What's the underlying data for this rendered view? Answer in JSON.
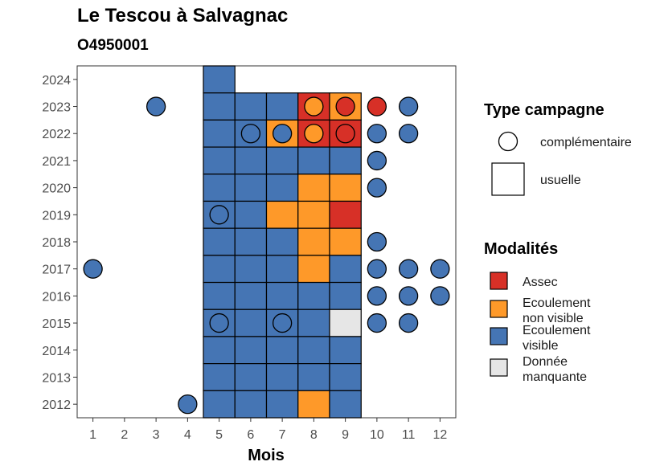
{
  "chart_data": {
    "type": "heatmap",
    "title": "Le Tescou à Salvagnac",
    "subtitle": "O4950001",
    "xlabel": "Mois",
    "ylabel": "",
    "x_ticks": [
      1,
      2,
      3,
      4,
      5,
      6,
      7,
      8,
      9,
      10,
      11,
      12
    ],
    "y_ticks": [
      2012,
      2013,
      2014,
      2015,
      2016,
      2017,
      2018,
      2019,
      2020,
      2021,
      2022,
      2023,
      2024
    ],
    "xlim": [
      0.5,
      12.5
    ],
    "ylim": [
      2011.5,
      2024.5
    ],
    "grid": false,
    "colors": {
      "Assec": "#d73027",
      "Ecoulement non visible": "#fe9929",
      "Ecoulement visible": "#4575b4",
      "Donnée manquante": "#e6e6e6"
    },
    "usuelle": [
      {
        "year": 2024,
        "month": 5,
        "modalite": "Ecoulement visible"
      },
      {
        "year": 2023,
        "month": 5,
        "modalite": "Ecoulement visible"
      },
      {
        "year": 2023,
        "month": 6,
        "modalite": "Ecoulement visible"
      },
      {
        "year": 2023,
        "month": 7,
        "modalite": "Ecoulement visible"
      },
      {
        "year": 2023,
        "month": 8,
        "modalite": "Assec"
      },
      {
        "year": 2023,
        "month": 9,
        "modalite": "Ecoulement non visible"
      },
      {
        "year": 2022,
        "month": 5,
        "modalite": "Ecoulement visible"
      },
      {
        "year": 2022,
        "month": 6,
        "modalite": "Ecoulement visible"
      },
      {
        "year": 2022,
        "month": 7,
        "modalite": "Ecoulement non visible"
      },
      {
        "year": 2022,
        "month": 8,
        "modalite": "Assec"
      },
      {
        "year": 2022,
        "month": 9,
        "modalite": "Assec"
      },
      {
        "year": 2021,
        "month": 5,
        "modalite": "Ecoulement visible"
      },
      {
        "year": 2021,
        "month": 6,
        "modalite": "Ecoulement visible"
      },
      {
        "year": 2021,
        "month": 7,
        "modalite": "Ecoulement visible"
      },
      {
        "year": 2021,
        "month": 8,
        "modalite": "Ecoulement visible"
      },
      {
        "year": 2021,
        "month": 9,
        "modalite": "Ecoulement visible"
      },
      {
        "year": 2020,
        "month": 5,
        "modalite": "Ecoulement visible"
      },
      {
        "year": 2020,
        "month": 6,
        "modalite": "Ecoulement visible"
      },
      {
        "year": 2020,
        "month": 7,
        "modalite": "Ecoulement visible"
      },
      {
        "year": 2020,
        "month": 8,
        "modalite": "Ecoulement non visible"
      },
      {
        "year": 2020,
        "month": 9,
        "modalite": "Ecoulement non visible"
      },
      {
        "year": 2019,
        "month": 5,
        "modalite": "Ecoulement visible"
      },
      {
        "year": 2019,
        "month": 6,
        "modalite": "Ecoulement visible"
      },
      {
        "year": 2019,
        "month": 7,
        "modalite": "Ecoulement non visible"
      },
      {
        "year": 2019,
        "month": 8,
        "modalite": "Ecoulement non visible"
      },
      {
        "year": 2019,
        "month": 9,
        "modalite": "Assec"
      },
      {
        "year": 2018,
        "month": 5,
        "modalite": "Ecoulement visible"
      },
      {
        "year": 2018,
        "month": 6,
        "modalite": "Ecoulement visible"
      },
      {
        "year": 2018,
        "month": 7,
        "modalite": "Ecoulement visible"
      },
      {
        "year": 2018,
        "month": 8,
        "modalite": "Ecoulement non visible"
      },
      {
        "year": 2018,
        "month": 9,
        "modalite": "Ecoulement non visible"
      },
      {
        "year": 2017,
        "month": 5,
        "modalite": "Ecoulement visible"
      },
      {
        "year": 2017,
        "month": 6,
        "modalite": "Ecoulement visible"
      },
      {
        "year": 2017,
        "month": 7,
        "modalite": "Ecoulement visible"
      },
      {
        "year": 2017,
        "month": 8,
        "modalite": "Ecoulement non visible"
      },
      {
        "year": 2017,
        "month": 9,
        "modalite": "Ecoulement visible"
      },
      {
        "year": 2016,
        "month": 5,
        "modalite": "Ecoulement visible"
      },
      {
        "year": 2016,
        "month": 6,
        "modalite": "Ecoulement visible"
      },
      {
        "year": 2016,
        "month": 7,
        "modalite": "Ecoulement visible"
      },
      {
        "year": 2016,
        "month": 8,
        "modalite": "Ecoulement visible"
      },
      {
        "year": 2016,
        "month": 9,
        "modalite": "Ecoulement visible"
      },
      {
        "year": 2015,
        "month": 5,
        "modalite": "Ecoulement visible"
      },
      {
        "year": 2015,
        "month": 6,
        "modalite": "Ecoulement visible"
      },
      {
        "year": 2015,
        "month": 7,
        "modalite": "Ecoulement visible"
      },
      {
        "year": 2015,
        "month": 8,
        "modalite": "Ecoulement visible"
      },
      {
        "year": 2015,
        "month": 9,
        "modalite": "Donnée manquante"
      },
      {
        "year": 2014,
        "month": 5,
        "modalite": "Ecoulement visible"
      },
      {
        "year": 2014,
        "month": 6,
        "modalite": "Ecoulement visible"
      },
      {
        "year": 2014,
        "month": 7,
        "modalite": "Ecoulement visible"
      },
      {
        "year": 2014,
        "month": 8,
        "modalite": "Ecoulement visible"
      },
      {
        "year": 2014,
        "month": 9,
        "modalite": "Ecoulement visible"
      },
      {
        "year": 2013,
        "month": 5,
        "modalite": "Ecoulement visible"
      },
      {
        "year": 2013,
        "month": 6,
        "modalite": "Ecoulement visible"
      },
      {
        "year": 2013,
        "month": 7,
        "modalite": "Ecoulement visible"
      },
      {
        "year": 2013,
        "month": 8,
        "modalite": "Ecoulement visible"
      },
      {
        "year": 2013,
        "month": 9,
        "modalite": "Ecoulement visible"
      },
      {
        "year": 2012,
        "month": 5,
        "modalite": "Ecoulement visible"
      },
      {
        "year": 2012,
        "month": 6,
        "modalite": "Ecoulement visible"
      },
      {
        "year": 2012,
        "month": 7,
        "modalite": "Ecoulement visible"
      },
      {
        "year": 2012,
        "month": 8,
        "modalite": "Ecoulement non visible"
      },
      {
        "year": 2012,
        "month": 9,
        "modalite": "Ecoulement visible"
      }
    ],
    "complementaire": [
      {
        "year": 2023,
        "month": 3,
        "modalite": "Ecoulement visible"
      },
      {
        "year": 2023,
        "month": 8,
        "modalite": "Ecoulement non visible"
      },
      {
        "year": 2023,
        "month": 9,
        "modalite": "Assec"
      },
      {
        "year": 2023,
        "month": 10,
        "modalite": "Assec"
      },
      {
        "year": 2023,
        "month": 11,
        "modalite": "Ecoulement visible"
      },
      {
        "year": 2022,
        "month": 6,
        "modalite": "Ecoulement visible"
      },
      {
        "year": 2022,
        "month": 7,
        "modalite": "Ecoulement visible"
      },
      {
        "year": 2022,
        "month": 8,
        "modalite": "Ecoulement non visible"
      },
      {
        "year": 2022,
        "month": 9,
        "modalite": "Assec"
      },
      {
        "year": 2022,
        "month": 10,
        "modalite": "Ecoulement visible"
      },
      {
        "year": 2022,
        "month": 11,
        "modalite": "Ecoulement visible"
      },
      {
        "year": 2021,
        "month": 10,
        "modalite": "Ecoulement visible"
      },
      {
        "year": 2020,
        "month": 10,
        "modalite": "Ecoulement visible"
      },
      {
        "year": 2019,
        "month": 5,
        "modalite": "Ecoulement visible"
      },
      {
        "year": 2018,
        "month": 10,
        "modalite": "Ecoulement visible"
      },
      {
        "year": 2017,
        "month": 1,
        "modalite": "Ecoulement visible"
      },
      {
        "year": 2017,
        "month": 10,
        "modalite": "Ecoulement visible"
      },
      {
        "year": 2017,
        "month": 11,
        "modalite": "Ecoulement visible"
      },
      {
        "year": 2017,
        "month": 12,
        "modalite": "Ecoulement visible"
      },
      {
        "year": 2016,
        "month": 10,
        "modalite": "Ecoulement visible"
      },
      {
        "year": 2016,
        "month": 11,
        "modalite": "Ecoulement visible"
      },
      {
        "year": 2016,
        "month": 12,
        "modalite": "Ecoulement visible"
      },
      {
        "year": 2015,
        "month": 5,
        "modalite": "Ecoulement visible"
      },
      {
        "year": 2015,
        "month": 7,
        "modalite": "Ecoulement visible"
      },
      {
        "year": 2015,
        "month": 10,
        "modalite": "Ecoulement visible"
      },
      {
        "year": 2015,
        "month": 11,
        "modalite": "Ecoulement visible"
      },
      {
        "year": 2012,
        "month": 4,
        "modalite": "Ecoulement visible"
      }
    ],
    "legend": {
      "type_title": "Type campagne",
      "type_entries": [
        "complémentaire",
        "usuelle"
      ],
      "modal_title": "Modalités",
      "modal_entries": [
        {
          "lines": [
            "Assec"
          ],
          "key": "Assec"
        },
        {
          "lines": [
            "Ecoulement",
            "non visible"
          ],
          "key": "Ecoulement non visible"
        },
        {
          "lines": [
            "Ecoulement",
            "visible"
          ],
          "key": "Ecoulement visible"
        },
        {
          "lines": [
            "Donnée",
            "manquante"
          ],
          "key": "Donnée manquante"
        }
      ],
      "placement": "right"
    }
  }
}
